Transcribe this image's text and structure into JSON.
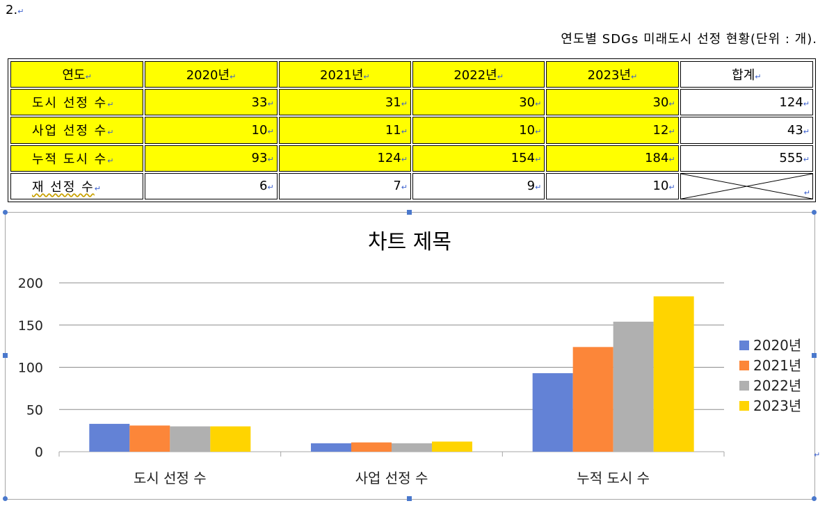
{
  "doc": {
    "section_number": "2.",
    "table_caption": "연도별 SDGs 미래도시 선정 현황(단위 : 개)."
  },
  "table": {
    "header": [
      "연도",
      "2020년",
      "2021년",
      "2022년",
      "2023년",
      "합계"
    ],
    "rows": [
      {
        "label": "도시 선정 수",
        "values": [
          "33",
          "31",
          "30",
          "30"
        ],
        "total": "124"
      },
      {
        "label": "사업 선정 수",
        "values": [
          "10",
          "11",
          "10",
          "12"
        ],
        "total": "43"
      },
      {
        "label": "누적 도시 수",
        "values": [
          "93",
          "124",
          "154",
          "184"
        ],
        "total": "555"
      },
      {
        "label": "재 선정 수",
        "values": [
          "6",
          "7",
          "9",
          "10"
        ],
        "total": ""
      }
    ],
    "highlight_color": "#ffff00"
  },
  "chart_data": {
    "type": "bar",
    "title": "차트 제목",
    "categories": [
      "도시 선정 수",
      "사업 선정 수",
      "누적 도시 수"
    ],
    "series": [
      {
        "name": "2020년",
        "values": [
          33,
          10,
          93
        ],
        "color": "#6382d6"
      },
      {
        "name": "2021년",
        "values": [
          31,
          11,
          124
        ],
        "color": "#fc8639"
      },
      {
        "name": "2022년",
        "values": [
          30,
          10,
          154
        ],
        "color": "#b0b0b0"
      },
      {
        "name": "2023년",
        "values": [
          30,
          12,
          184
        ],
        "color": "#ffd400"
      }
    ],
    "yticks": [
      "0",
      "50",
      "100",
      "150",
      "200"
    ],
    "ylim": [
      0,
      200
    ],
    "xlabel": "",
    "ylabel": "",
    "grid": true,
    "legend": "right"
  }
}
